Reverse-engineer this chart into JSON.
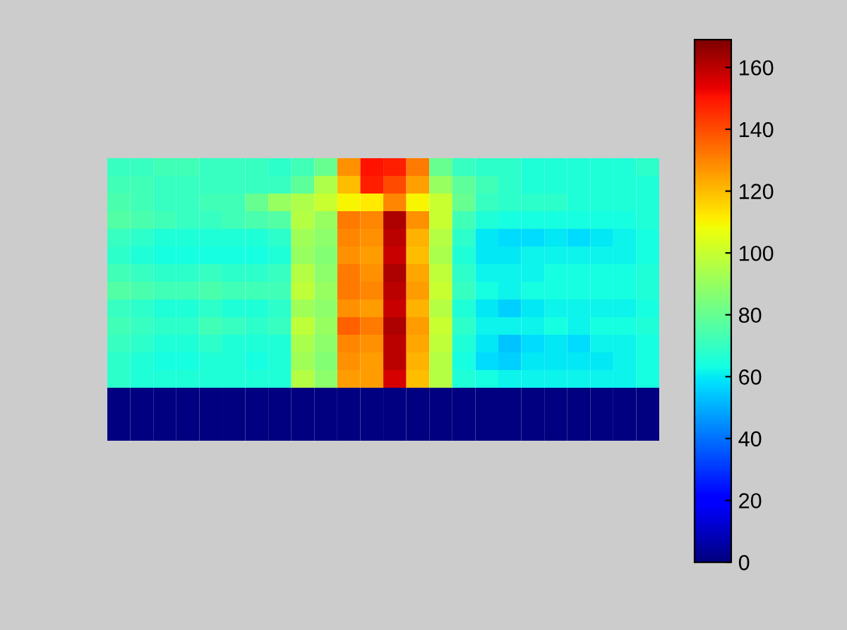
{
  "chart_data": {
    "type": "heatmap",
    "tick_labels": false,
    "categories": [
      null,
      null,
      null,
      null,
      null,
      null,
      null,
      null,
      null,
      null,
      null,
      null,
      null,
      null,
      null,
      null,
      null,
      null,
      null,
      null,
      null,
      null,
      null,
      null
    ],
    "y_categories": [
      null,
      null,
      null,
      null,
      null,
      null,
      null,
      null,
      null,
      null,
      null,
      null,
      null,
      null,
      null,
      null
    ],
    "cells": [
      [
        70,
        70,
        72,
        72,
        70,
        70,
        70,
        68,
        72,
        80,
        128,
        150,
        148,
        132,
        80,
        70,
        68,
        68,
        66,
        66,
        66,
        66,
        66,
        68
      ],
      [
        72,
        72,
        70,
        70,
        70,
        70,
        70,
        70,
        78,
        95,
        120,
        148,
        140,
        125,
        90,
        78,
        72,
        68,
        66,
        66,
        66,
        66,
        66,
        66
      ],
      [
        74,
        72,
        70,
        70,
        72,
        72,
        80,
        90,
        95,
        100,
        110,
        112,
        130,
        110,
        100,
        80,
        70,
        68,
        68,
        68,
        66,
        66,
        66,
        66
      ],
      [
        76,
        74,
        72,
        70,
        70,
        72,
        74,
        76,
        96,
        90,
        132,
        130,
        162,
        128,
        100,
        72,
        66,
        64,
        64,
        64,
        64,
        64,
        64,
        66
      ],
      [
        70,
        68,
        66,
        66,
        66,
        66,
        66,
        68,
        92,
        88,
        130,
        128,
        160,
        122,
        96,
        68,
        60,
        58,
        58,
        60,
        58,
        60,
        62,
        64
      ],
      [
        68,
        66,
        64,
        64,
        64,
        64,
        64,
        66,
        90,
        86,
        128,
        126,
        158,
        120,
        94,
        66,
        60,
        60,
        62,
        62,
        62,
        62,
        62,
        64
      ],
      [
        72,
        70,
        68,
        68,
        70,
        68,
        68,
        70,
        96,
        88,
        132,
        128,
        162,
        124,
        98,
        68,
        62,
        62,
        62,
        64,
        64,
        64,
        64,
        66
      ],
      [
        76,
        74,
        72,
        72,
        74,
        72,
        72,
        72,
        98,
        90,
        132,
        130,
        160,
        126,
        100,
        70,
        64,
        62,
        64,
        64,
        64,
        64,
        64,
        66
      ],
      [
        70,
        68,
        66,
        66,
        68,
        66,
        66,
        68,
        92,
        88,
        128,
        126,
        158,
        122,
        96,
        66,
        60,
        56,
        60,
        62,
        62,
        62,
        62,
        64
      ],
      [
        72,
        70,
        68,
        68,
        72,
        70,
        68,
        70,
        98,
        90,
        136,
        132,
        162,
        126,
        100,
        68,
        62,
        62,
        62,
        64,
        62,
        64,
        64,
        66
      ],
      [
        70,
        68,
        66,
        66,
        68,
        66,
        66,
        66,
        94,
        88,
        130,
        128,
        160,
        124,
        98,
        66,
        60,
        54,
        58,
        60,
        58,
        62,
        62,
        64
      ],
      [
        68,
        66,
        64,
        64,
        66,
        66,
        64,
        66,
        92,
        86,
        128,
        126,
        160,
        122,
        96,
        64,
        58,
        56,
        60,
        60,
        60,
        60,
        62,
        64
      ],
      [
        68,
        66,
        66,
        66,
        66,
        66,
        66,
        66,
        96,
        88,
        126,
        126,
        156,
        120,
        96,
        66,
        64,
        62,
        62,
        62,
        62,
        62,
        62,
        64
      ],
      [
        0,
        0,
        0,
        0,
        0,
        0,
        0,
        0,
        0,
        0,
        0,
        0,
        0,
        0,
        0,
        0,
        0,
        0,
        0,
        0,
        0,
        0,
        0,
        0
      ],
      [
        0,
        0,
        0,
        0,
        0,
        0,
        0,
        0,
        0,
        0,
        0,
        0,
        0,
        0,
        0,
        0,
        0,
        0,
        0,
        0,
        0,
        0,
        0,
        0
      ],
      [
        0,
        0,
        0,
        0,
        0,
        0,
        0,
        0,
        0,
        0,
        0,
        0,
        0,
        0,
        0,
        0,
        0,
        0,
        0,
        0,
        0,
        0,
        0,
        0
      ]
    ],
    "clim": [
      0,
      169
    ],
    "cticks": [
      0,
      20,
      40,
      60,
      80,
      100,
      120,
      140,
      160
    ]
  }
}
